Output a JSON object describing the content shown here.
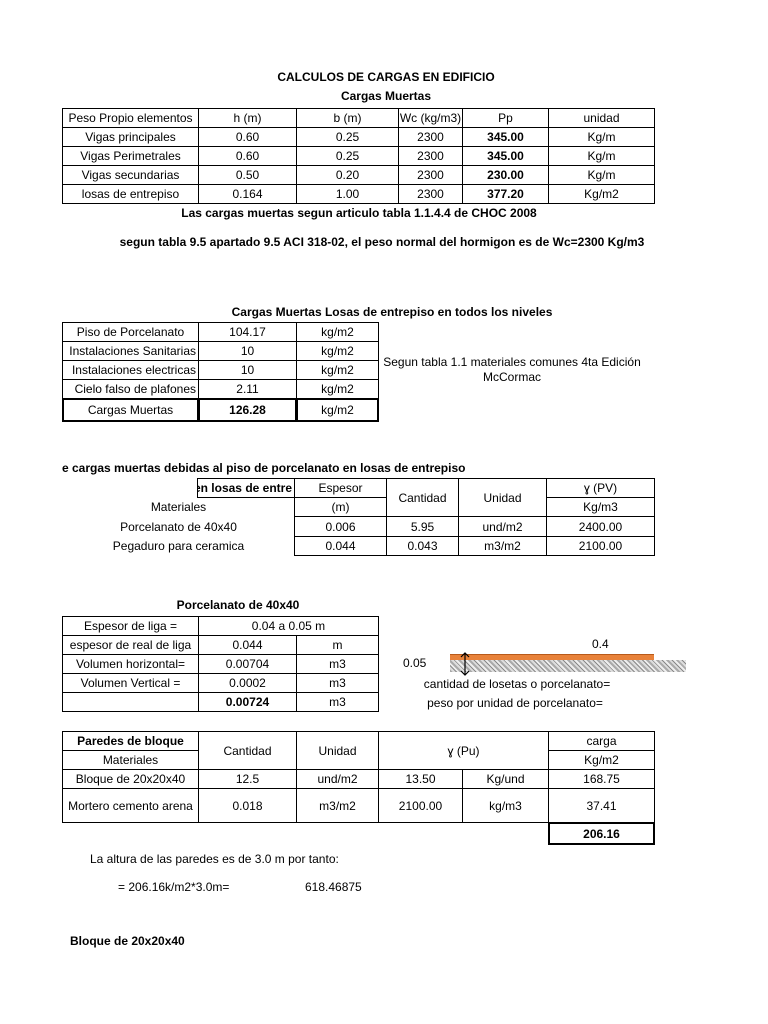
{
  "title": "CALCULOS DE CARGAS EN EDIFICIO",
  "subtitle": "Cargas Muertas",
  "t1": {
    "header": [
      "Peso Propio elementos",
      "h (m)",
      "b (m)",
      "Wc (kg/m3)",
      "Pp",
      "unidad"
    ],
    "rows": [
      [
        "Vigas principales",
        "0.60",
        "0.25",
        "2300",
        "345.00",
        "Kg/m"
      ],
      [
        "Vigas Perimetrales",
        "0.60",
        "0.25",
        "2300",
        "345.00",
        "Kg/m"
      ],
      [
        "Vigas secundarias",
        "0.50",
        "0.20",
        "2300",
        "230.00",
        "Kg/m"
      ],
      [
        "losas de entrepiso",
        "0.164",
        "1.00",
        "2300",
        "377.20",
        "Kg/m2"
      ]
    ]
  },
  "note1": "Las cargas muertas segun articulo tabla 1.1.4.4 de CHOC 2008",
  "note2": "segun tabla 9.5 apartado 9.5 ACI 318-02, el peso normal del hormigon es de Wc=2300 Kg/m3",
  "t2": {
    "title": "Cargas Muertas Losas de entrepiso en todos los niveles",
    "rows": [
      [
        "Piso de Porcelanato",
        "104.17",
        "kg/m2"
      ],
      [
        "Instalaciones Sanitarias",
        "10",
        "kg/m2"
      ],
      [
        "Instalaciones electricas",
        "10",
        "kg/m2"
      ],
      [
        "Cielo falso de plafones",
        "2.11",
        "kg/m2"
      ],
      [
        "Cargas Muertas",
        "126.28",
        "kg/m2"
      ]
    ],
    "side_note": [
      "Segun tabla 1.1 materiales comunes 4ta Edición",
      "McCormac"
    ]
  },
  "t3": {
    "heading": "e cargas muertas debidas al piso de porcelanato en losas de entrepiso",
    "box_label": "Piso en losas de entre",
    "materiales": "Materiales",
    "espesor": "Espesor",
    "m": "(m)",
    "cantidad": "Cantidad",
    "unidad": "Unidad",
    "pv": "ɣ (PV)",
    "kgm3": "Kg/m3",
    "rows": [
      [
        "Porcelanato de 40x40",
        "0.006",
        "5.95",
        "und/m2",
        "2400.00"
      ],
      [
        "Pegaduro para ceramica",
        "0.044",
        "0.043",
        "m3/m2",
        "2100.00"
      ]
    ]
  },
  "t4": {
    "title": "Porcelanato de 40x40",
    "r0": [
      "Espesor de liga =",
      "0.04 a 0.05 m"
    ],
    "rows": [
      [
        "espesor de real de liga",
        "0.044",
        "m"
      ],
      [
        "Volumen horizontal=",
        "0.00704",
        "m3"
      ],
      [
        "Volumen Vertical =",
        "0.0002",
        "m3"
      ],
      [
        "",
        "0.00724",
        "m3"
      ]
    ]
  },
  "diagram": {
    "width": "0.4",
    "thickness": "0.05",
    "line1": "cantidad de losetas o porcelanato=",
    "line2": "peso por unidad de porcelanato=",
    "tile_color": "#e8823a"
  },
  "t5": {
    "title": "Paredes de bloque",
    "materiales": "Materiales",
    "cantidad": "Cantidad",
    "unidad": "Unidad",
    "pu": "ɣ (Pu)",
    "carga": "carga",
    "kgm2": "Kg/m2",
    "rows": [
      [
        "Bloque de 20x20x40",
        "12.5",
        "und/m2",
        "13.50",
        "Kg/und",
        "168.75"
      ],
      [
        "Mortero cemento arena",
        "0.018",
        "m3/m2",
        "2100.00",
        "kg/m3",
        "37.41"
      ]
    ],
    "total": "206.16"
  },
  "note3": "La altura de las paredes es de 3.0 m por tanto:",
  "formula": "= 206.16k/m2*3.0m=",
  "formula_result": "618.46875",
  "footer_heading": "Bloque de 20x20x40"
}
